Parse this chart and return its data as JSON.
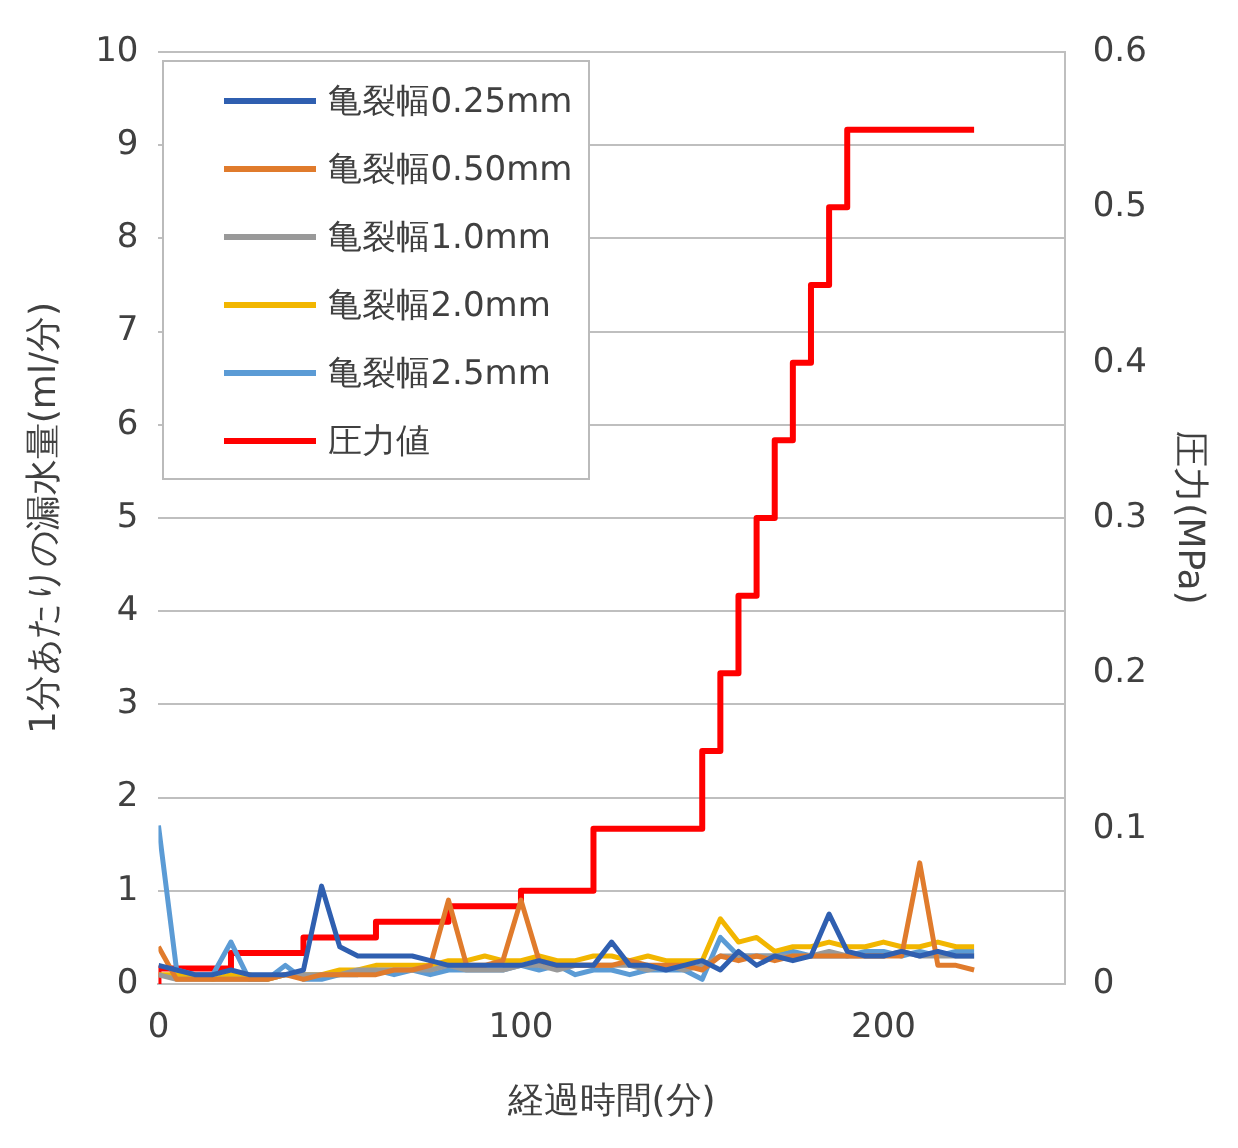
{
  "chart_data": {
    "type": "line",
    "xlabel": "経過時間(分)",
    "ylabel": "1分あたりの漏水量(ml/分)",
    "y2label": "圧力(MPa)",
    "x": [
      0,
      5,
      10,
      15,
      20,
      25,
      30,
      35,
      40,
      45,
      50,
      55,
      60,
      65,
      70,
      75,
      80,
      85,
      90,
      95,
      100,
      105,
      110,
      115,
      120,
      125,
      130,
      135,
      140,
      145,
      150,
      155,
      160,
      165,
      170,
      175,
      180,
      185,
      190,
      195,
      200,
      205,
      210,
      215,
      220,
      225
    ],
    "series": [
      {
        "name": "亀裂幅0.25mm",
        "color": "#2f5fb0",
        "values": [
          0.2,
          0.15,
          0.1,
          0.1,
          0.15,
          0.1,
          0.1,
          0.1,
          0.15,
          1.05,
          0.4,
          0.3,
          0.3,
          0.3,
          0.3,
          0.25,
          0.2,
          0.2,
          0.2,
          0.2,
          0.2,
          0.25,
          0.2,
          0.2,
          0.2,
          0.45,
          0.2,
          0.2,
          0.15,
          0.2,
          0.25,
          0.15,
          0.35,
          0.2,
          0.3,
          0.25,
          0.3,
          0.75,
          0.35,
          0.3,
          0.3,
          0.35,
          0.3,
          0.35,
          0.3,
          0.3
        ]
      },
      {
        "name": "亀裂幅0.50mm",
        "color": "#e07b2c",
        "values": [
          0.4,
          0.05,
          0.05,
          0.05,
          0.05,
          0.05,
          0.05,
          0.1,
          0.05,
          0.1,
          0.1,
          0.1,
          0.1,
          0.15,
          0.15,
          0.2,
          0.9,
          0.2,
          0.2,
          0.25,
          0.9,
          0.25,
          0.2,
          0.2,
          0.2,
          0.2,
          0.25,
          0.2,
          0.2,
          0.2,
          0.15,
          0.3,
          0.25,
          0.3,
          0.25,
          0.3,
          0.3,
          0.3,
          0.3,
          0.3,
          0.3,
          0.3,
          1.3,
          0.2,
          0.2,
          0.15
        ]
      },
      {
        "name": "亀裂幅1.0mm",
        "color": "#999999",
        "values": [
          0.1,
          0.05,
          0.05,
          0.05,
          0.05,
          0.05,
          0.05,
          0.1,
          0.1,
          0.1,
          0.1,
          0.15,
          0.15,
          0.15,
          0.15,
          0.15,
          0.2,
          0.15,
          0.15,
          0.15,
          0.2,
          0.2,
          0.15,
          0.2,
          0.2,
          0.2,
          0.2,
          0.15,
          0.2,
          0.15,
          0.2,
          0.3,
          0.3,
          0.3,
          0.3,
          0.3,
          0.3,
          0.35,
          0.3,
          0.3,
          0.3,
          0.35,
          0.3,
          0.3,
          0.3,
          0.3
        ]
      },
      {
        "name": "亀裂幅2.0mm",
        "color": "#f2b600",
        "values": [
          0.1,
          0.1,
          0.1,
          0.05,
          0.1,
          0.1,
          0.05,
          0.1,
          0.1,
          0.1,
          0.15,
          0.15,
          0.2,
          0.2,
          0.2,
          0.2,
          0.25,
          0.25,
          0.3,
          0.25,
          0.25,
          0.3,
          0.25,
          0.25,
          0.3,
          0.3,
          0.25,
          0.3,
          0.25,
          0.25,
          0.25,
          0.7,
          0.45,
          0.5,
          0.35,
          0.4,
          0.4,
          0.45,
          0.4,
          0.4,
          0.45,
          0.4,
          0.4,
          0.45,
          0.4,
          0.4
        ]
      },
      {
        "name": "亀裂幅2.5mm",
        "color": "#5b9bd5",
        "values": [
          1.7,
          0.15,
          0.1,
          0.1,
          0.45,
          0.05,
          0.05,
          0.2,
          0.05,
          0.05,
          0.1,
          0.1,
          0.15,
          0.1,
          0.15,
          0.1,
          0.15,
          0.15,
          0.15,
          0.15,
          0.2,
          0.15,
          0.2,
          0.1,
          0.15,
          0.15,
          0.1,
          0.15,
          0.15,
          0.15,
          0.05,
          0.5,
          0.3,
          0.3,
          0.3,
          0.35,
          0.3,
          0.3,
          0.3,
          0.35,
          0.35,
          0.3,
          0.35,
          0.3,
          0.35,
          0.35
        ]
      },
      {
        "name": "圧力値",
        "type": "step",
        "axis": "y2",
        "color": "#ff0000",
        "x": [
          0,
          20,
          40,
          60,
          80,
          100,
          120,
          150,
          155,
          160,
          165,
          170,
          175,
          180,
          185,
          190,
          195,
          225
        ],
        "values": [
          0,
          0.01,
          0.02,
          0.03,
          0.04,
          0.05,
          0.06,
          0.1,
          0.15,
          0.2,
          0.25,
          0.3,
          0.35,
          0.4,
          0.45,
          0.5,
          0.55,
          0.55
        ]
      }
    ],
    "xlim": [
      0,
      250
    ],
    "xticks": [
      0,
      100,
      200
    ],
    "ylim": [
      0,
      10
    ],
    "yticks": [
      0,
      1,
      2,
      3,
      4,
      5,
      6,
      7,
      8,
      9,
      10
    ],
    "y2lim": [
      0,
      0.6
    ],
    "y2ticks": [
      0,
      0.1,
      0.2,
      0.3,
      0.4,
      0.5,
      0.6
    ],
    "grid": "y",
    "legend": "top left",
    "marker": "none"
  }
}
